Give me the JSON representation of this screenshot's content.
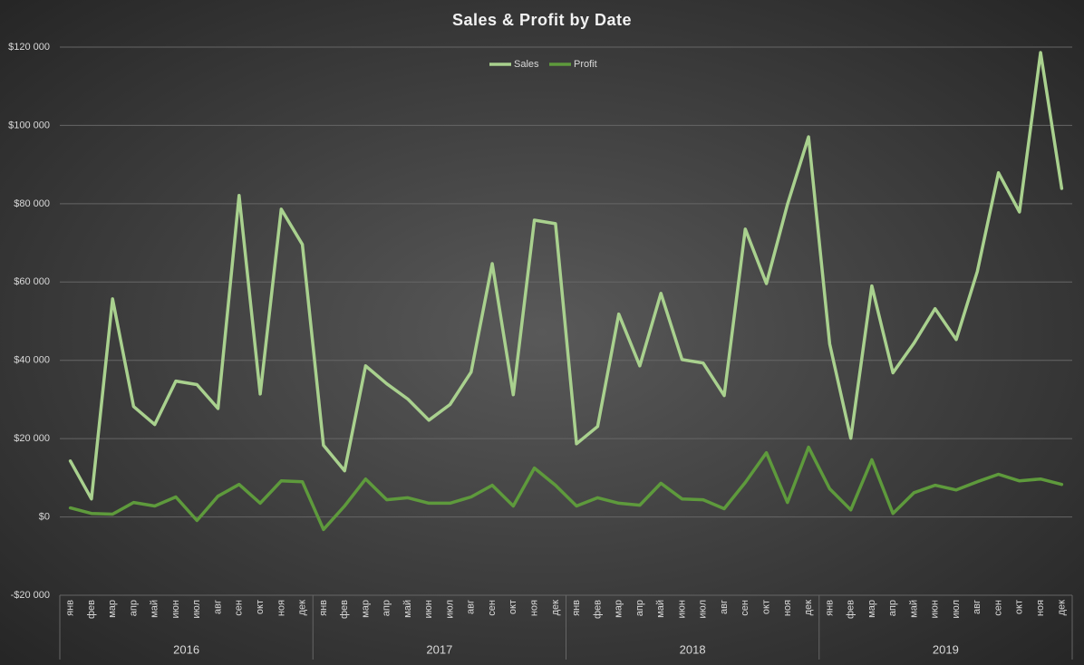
{
  "chart_data": {
    "type": "line",
    "title": "Sales & Profit by Date",
    "categories": [
      "янв",
      "фев",
      "мар",
      "апр",
      "май",
      "июн",
      "июл",
      "авг",
      "сен",
      "окт",
      "ноя",
      "дек",
      "янв",
      "фев",
      "мар",
      "апр",
      "май",
      "июн",
      "июл",
      "авг",
      "сен",
      "окт",
      "ноя",
      "дек",
      "янв",
      "фев",
      "мар",
      "апр",
      "май",
      "июн",
      "июл",
      "авг",
      "сен",
      "окт",
      "ноя",
      "дек",
      "янв",
      "фев",
      "мар",
      "апр",
      "май",
      "июн",
      "июл",
      "авг",
      "сен",
      "окт",
      "ноя",
      "дек"
    ],
    "category_groups": [
      "2016",
      "2017",
      "2018",
      "2019"
    ],
    "series": [
      {
        "name": "Sales",
        "color": "#a9d18e",
        "values": [
          14300,
          4600,
          55700,
          28200,
          23600,
          34700,
          33800,
          27700,
          82100,
          31400,
          78600,
          69600,
          18300,
          11800,
          38600,
          34000,
          30100,
          24700,
          28700,
          37000,
          64700,
          31200,
          75800,
          74900,
          18700,
          23100,
          51800,
          38600,
          57100,
          40200,
          39300,
          31000,
          73500,
          59600,
          79800,
          97100,
          44200,
          20100,
          59000,
          36800,
          44400,
          53200,
          45300,
          62700,
          87900,
          77900,
          118600,
          83900
        ]
      },
      {
        "name": "Profit",
        "color": "#5e9a3c",
        "values": [
          2300,
          900,
          700,
          3700,
          2800,
          5100,
          -900,
          5300,
          8300,
          3500,
          9200,
          9000,
          -3200,
          2800,
          9700,
          4400,
          4900,
          3500,
          3500,
          5100,
          8100,
          2800,
          12500,
          8100,
          2800,
          4900,
          3500,
          3000,
          8600,
          4600,
          4400,
          2100,
          8800,
          16400,
          3700,
          17800,
          7200,
          1800,
          14600,
          900,
          6200,
          8100,
          6900,
          9000,
          10900,
          9200,
          9700,
          8300
        ]
      }
    ],
    "ylim": [
      -20000,
      120000
    ],
    "yticks": [
      {
        "value": -20000,
        "label": "-$20 000"
      },
      {
        "value": 0,
        "label": "$0"
      },
      {
        "value": 20000,
        "label": "$20 000"
      },
      {
        "value": 40000,
        "label": "$40 000"
      },
      {
        "value": 60000,
        "label": "$60 000"
      },
      {
        "value": 80000,
        "label": "$80 000"
      },
      {
        "value": 100000,
        "label": "$100 000"
      },
      {
        "value": 120000,
        "label": "$120 000"
      }
    ],
    "grid": true,
    "legend": "top"
  }
}
